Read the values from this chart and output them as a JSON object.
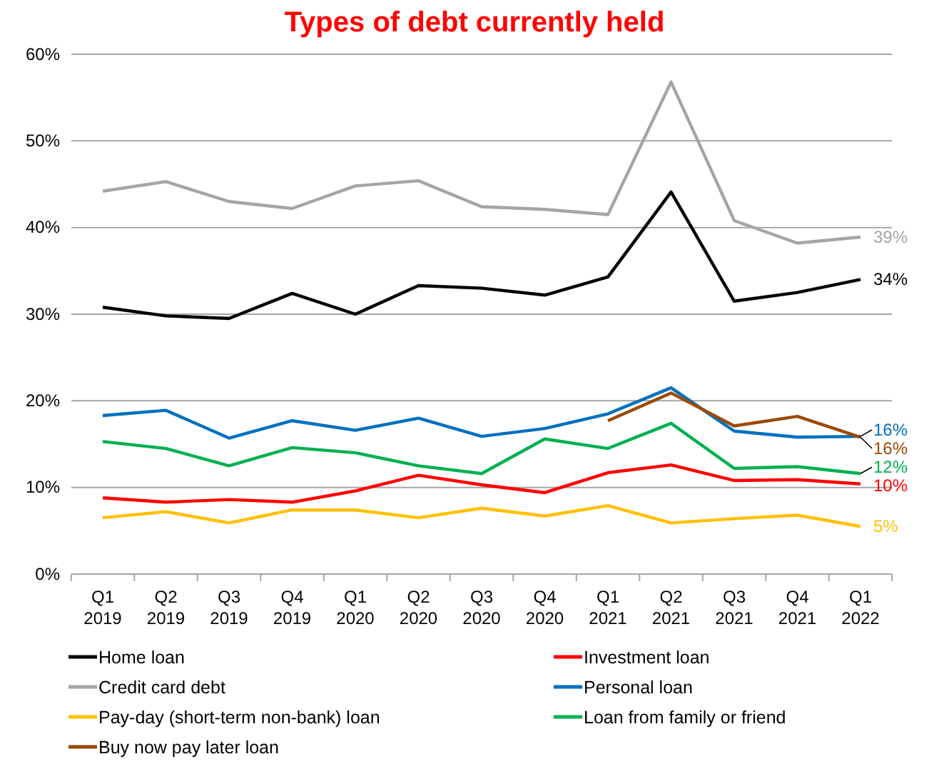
{
  "chart_data": {
    "type": "line",
    "title": "Types of debt currently held",
    "categories": [
      "Q1 2019",
      "Q2 2019",
      "Q3 2019",
      "Q4 2019",
      "Q1 2020",
      "Q2 2020",
      "Q3 2020",
      "Q4 2020",
      "Q1 2021",
      "Q2 2021",
      "Q3 2021",
      "Q4 2021",
      "Q1 2022"
    ],
    "ylim": [
      0,
      60
    ],
    "yticks": [
      {
        "value": 0,
        "label": "0%"
      },
      {
        "value": 10,
        "label": "10%"
      },
      {
        "value": 20,
        "label": "20%"
      },
      {
        "value": 30,
        "label": "30%"
      },
      {
        "value": 40,
        "label": "40%"
      },
      {
        "value": 50,
        "label": "50%"
      },
      {
        "value": 60,
        "label": "60%"
      }
    ],
    "grid": "y",
    "legend": "bottom",
    "marker": "none",
    "line_style": "solid",
    "series": [
      {
        "name": "Home loan",
        "color": "#000000",
        "values": [
          30.8,
          29.8,
          29.5,
          32.4,
          30.0,
          33.3,
          33.0,
          32.2,
          34.3,
          44.1,
          31.5,
          32.5,
          34.0
        ],
        "value_labels": [
          null,
          null,
          null,
          null,
          null,
          null,
          null,
          null,
          null,
          null,
          null,
          null,
          "34%"
        ]
      },
      {
        "name": "Investment loan",
        "color": "#ff0000",
        "values": [
          8.8,
          8.3,
          8.6,
          8.3,
          9.6,
          11.4,
          10.3,
          9.4,
          11.7,
          12.6,
          10.8,
          10.9,
          10.4
        ],
        "value_labels": [
          null,
          null,
          null,
          null,
          null,
          null,
          null,
          null,
          null,
          null,
          null,
          null,
          "10%"
        ]
      },
      {
        "name": "Credit card debt",
        "color": "#a5a5a5",
        "values": [
          44.2,
          45.3,
          43.0,
          42.2,
          44.8,
          45.4,
          42.4,
          42.1,
          41.5,
          56.8,
          40.8,
          38.2,
          38.9
        ],
        "value_labels": [
          null,
          null,
          null,
          null,
          null,
          null,
          null,
          null,
          null,
          null,
          null,
          null,
          "39%"
        ]
      },
      {
        "name": "Personal loan",
        "color": "#0070c0",
        "values": [
          18.3,
          18.9,
          15.7,
          17.7,
          16.6,
          18.0,
          15.9,
          16.8,
          18.5,
          21.5,
          16.5,
          15.8,
          15.9
        ],
        "value_labels": [
          null,
          null,
          null,
          null,
          null,
          null,
          null,
          null,
          null,
          null,
          null,
          null,
          "16%"
        ]
      },
      {
        "name": "Pay-day (short-term non-bank) loan",
        "color": "#ffc000",
        "values": [
          6.5,
          7.2,
          5.9,
          7.4,
          7.4,
          6.5,
          7.6,
          6.7,
          7.9,
          5.9,
          6.4,
          6.8,
          5.5
        ],
        "value_labels": [
          null,
          null,
          null,
          null,
          null,
          null,
          null,
          null,
          null,
          null,
          null,
          null,
          "5%"
        ]
      },
      {
        "name": "Loan from family or friend",
        "color": "#00b050",
        "values": [
          15.3,
          14.5,
          12.5,
          14.6,
          14.0,
          12.5,
          11.6,
          15.6,
          14.5,
          17.4,
          12.2,
          12.4,
          11.6
        ],
        "value_labels": [
          null,
          null,
          null,
          null,
          null,
          null,
          null,
          null,
          null,
          null,
          null,
          null,
          "12%"
        ]
      },
      {
        "name": "Buy now pay later loan",
        "color": "#9c4a06",
        "values": [
          null,
          null,
          null,
          null,
          null,
          null,
          null,
          null,
          17.7,
          20.9,
          17.1,
          18.2,
          15.8
        ],
        "value_labels": [
          null,
          null,
          null,
          null,
          null,
          null,
          null,
          null,
          null,
          null,
          null,
          null,
          "16%"
        ]
      }
    ]
  }
}
